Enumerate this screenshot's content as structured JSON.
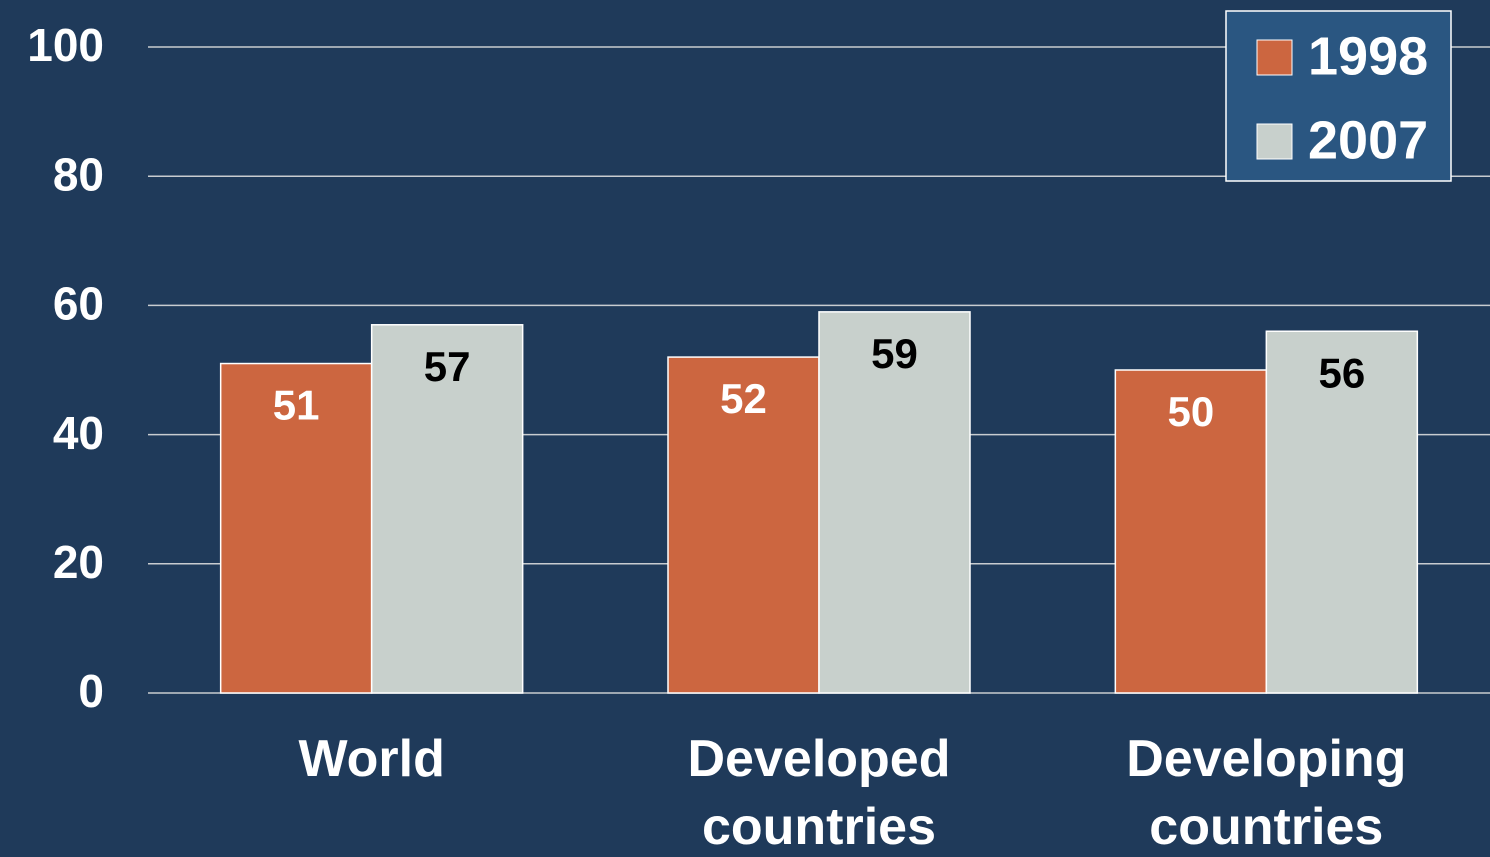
{
  "chart_data": {
    "type": "bar",
    "categories": [
      "World",
      "Developed countries",
      "Developing countries"
    ],
    "series": [
      {
        "name": "1998",
        "color": "#cc6640",
        "values": [
          51,
          52,
          50
        ]
      },
      {
        "name": "2007",
        "color": "#c8d0cc",
        "values": [
          57,
          59,
          56
        ]
      }
    ],
    "ylim": [
      0,
      100
    ],
    "yticks": [
      0,
      20,
      40,
      60,
      80,
      100
    ],
    "grid": true,
    "legend": "top-right"
  }
}
